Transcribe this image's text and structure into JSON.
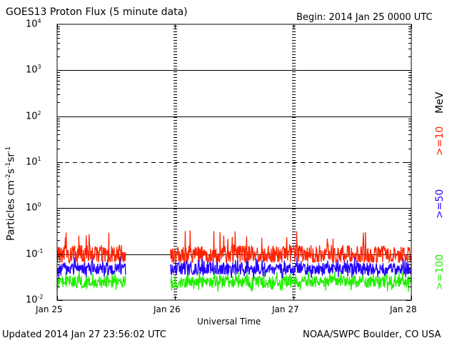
{
  "title": "GOES13 Proton Flux (5 minute data)",
  "begin_text": "Begin: 2014 Jan 25 0000 UTC",
  "updated_text": "Updated 2014 Jan 27 23:56:02 UTC",
  "credit_text": "NOAA/SWPC Boulder, CO USA",
  "chart_data": {
    "type": "line",
    "title": "GOES13 Proton Flux (5 minute data)",
    "xlabel": "Universal Time",
    "ylabel": "Particles cm-2 s-1 sr-1",
    "y_scale": "log",
    "ylim": [
      0.01,
      10000
    ],
    "xlim_days": [
      0,
      3
    ],
    "x_ticks": [
      {
        "day": 0,
        "label": "Jan 25"
      },
      {
        "day": 1,
        "label": "Jan 26"
      },
      {
        "day": 2,
        "label": "Jan 27"
      },
      {
        "day": 3,
        "label": "Jan 28"
      }
    ],
    "y_ticks": [
      {
        "exp": -2,
        "base": "10",
        "sup": "-2"
      },
      {
        "exp": -1,
        "base": "10",
        "sup": "-1"
      },
      {
        "exp": 0,
        "base": "10",
        "sup": "0"
      },
      {
        "exp": 1,
        "base": "10",
        "sup": "1"
      },
      {
        "exp": 2,
        "base": "10",
        "sup": "2"
      },
      {
        "exp": 3,
        "base": "10",
        "sup": "3"
      },
      {
        "exp": 4,
        "base": "10",
        "sup": "4"
      }
    ],
    "reference_lines": [
      {
        "value": 0.1,
        "style": "solid"
      },
      {
        "value": 1,
        "style": "solid"
      },
      {
        "value": 10,
        "style": "dashed"
      },
      {
        "value": 100,
        "style": "solid"
      },
      {
        "value": 1000,
        "style": "solid"
      }
    ],
    "data_gap_days": [
      0.58,
      0.96
    ],
    "legend": [
      {
        "label": ">=10",
        "unit": "MeV",
        "color": "#ff2200"
      },
      {
        "label": ">=50",
        "color": "#2200ff"
      },
      {
        "label": ">=100",
        "color": "#22ee00"
      }
    ],
    "series": [
      {
        "name": ">=10 MeV",
        "color": "#ff2200",
        "typical_value": 0.1,
        "range": [
          0.065,
          0.35
        ]
      },
      {
        "name": ">=50 MeV",
        "color": "#2200ff",
        "typical_value": 0.048,
        "range": [
          0.03,
          0.09
        ]
      },
      {
        "name": ">=100 MeV",
        "color": "#22ee00",
        "typical_value": 0.025,
        "range": [
          0.015,
          0.045
        ]
      }
    ]
  }
}
